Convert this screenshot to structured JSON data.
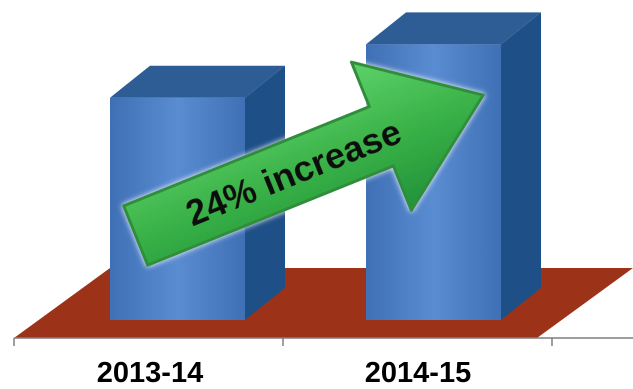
{
  "chart_data": {
    "type": "bar",
    "categories": [
      "2013-14",
      "2014-15"
    ],
    "values": [
      100,
      124
    ],
    "ylim": [
      0,
      130
    ],
    "grid": false,
    "legend": "none",
    "annotation": "24% increase"
  },
  "colors": {
    "bar_front": "#4F81C7",
    "bar_side": "#1E4F87",
    "bar_top": "#2E5D96",
    "floor": "#9C3318",
    "arrow_fill": "#3DB94A",
    "arrow_stroke": "#2F8E3A"
  }
}
